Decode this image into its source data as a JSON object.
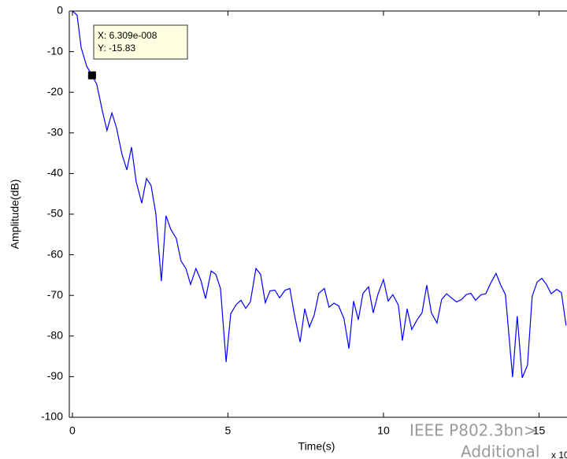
{
  "chart_data": {
    "type": "line",
    "xlabel": "Time(s)",
    "ylabel": "Amplitude(dB)",
    "x_multiplier": "x 10",
    "color": "#0000ff",
    "xlim": [
      -0.1,
      15.9
    ],
    "xticks": [
      0,
      5,
      10,
      15
    ],
    "ylim": [
      -100,
      0
    ],
    "yticks": [
      0,
      -10,
      -20,
      -30,
      -40,
      -50,
      -60,
      -70,
      -80,
      -90,
      -100
    ],
    "x": [
      0,
      0.15,
      0.28,
      0.46,
      0.63,
      0.78,
      0.96,
      1.11,
      1.27,
      1.42,
      1.59,
      1.75,
      1.9,
      2.05,
      2.23,
      2.38,
      2.53,
      2.68,
      2.86,
      3.01,
      3.16,
      3.34,
      3.49,
      3.65,
      3.8,
      3.97,
      4.13,
      4.28,
      4.46,
      4.61,
      4.76,
      4.94,
      5.09,
      5.27,
      5.42,
      5.57,
      5.72,
      5.9,
      6.05,
      6.2,
      6.35,
      6.51,
      6.66,
      6.84,
      6.99,
      7.14,
      7.32,
      7.47,
      7.62,
      7.77,
      7.92,
      8.1,
      8.25,
      8.41,
      8.56,
      8.73,
      8.89,
      9.04,
      9.19,
      9.34,
      9.52,
      9.67,
      9.82,
      10,
      10.15,
      10.3,
      10.48,
      10.61,
      10.76,
      10.91,
      11.09,
      11.24,
      11.39,
      11.54,
      11.72,
      11.87,
      12.03,
      12.18,
      12.35,
      12.51,
      12.66,
      12.81,
      12.96,
      13.14,
      13.29,
      13.44,
      13.62,
      13.77,
      13.92,
      14.15,
      14.3,
      14.46,
      14.63,
      14.78,
      14.94,
      15.09,
      15.24,
      15.39,
      15.57,
      15.72,
      15.87
    ],
    "values": [
      0,
      -1,
      -9,
      -13.6,
      -15.83,
      -18,
      -24.5,
      -29.4,
      -25.1,
      -28.8,
      -35.2,
      -39.1,
      -33.5,
      -42,
      -47.3,
      -41.2,
      -43,
      -49.8,
      -66.5,
      -50.4,
      -53.7,
      -56,
      -61.5,
      -63.4,
      -67.3,
      -63.4,
      -66.3,
      -70.8,
      -64,
      -64.8,
      -68.3,
      -86.4,
      -74.5,
      -72.2,
      -71.2,
      -73.2,
      -71.6,
      -63.4,
      -64.8,
      -71.8,
      -68.9,
      -68.7,
      -70.6,
      -68.7,
      -68.3,
      -74.9,
      -81.5,
      -73.3,
      -77.8,
      -74.9,
      -69.5,
      -68.3,
      -72.9,
      -71.9,
      -72.6,
      -75.7,
      -83.1,
      -71.4,
      -76,
      -69.5,
      -67.9,
      -74.3,
      -69.8,
      -66.1,
      -71.4,
      -69.8,
      -72.4,
      -81.1,
      -73.3,
      -78.4,
      -75.9,
      -74.3,
      -67.5,
      -74.3,
      -76.8,
      -71,
      -69.6,
      -70.6,
      -71.6,
      -71,
      -69.8,
      -69.5,
      -71.2,
      -69.8,
      -69.6,
      -67.1,
      -64.6,
      -67.5,
      -69.8,
      -90.1,
      -75.1,
      -90.3,
      -87.2,
      -70.2,
      -66.7,
      -65.8,
      -67.3,
      -69.6,
      -68.5,
      -69.3,
      -77.4
    ],
    "datatip": {
      "x_text": "X: 6.309e-008",
      "y_text": "Y: -15.83"
    },
    "overlay_texts": [
      "IEEE P802.3bn>",
      "Additional"
    ]
  }
}
